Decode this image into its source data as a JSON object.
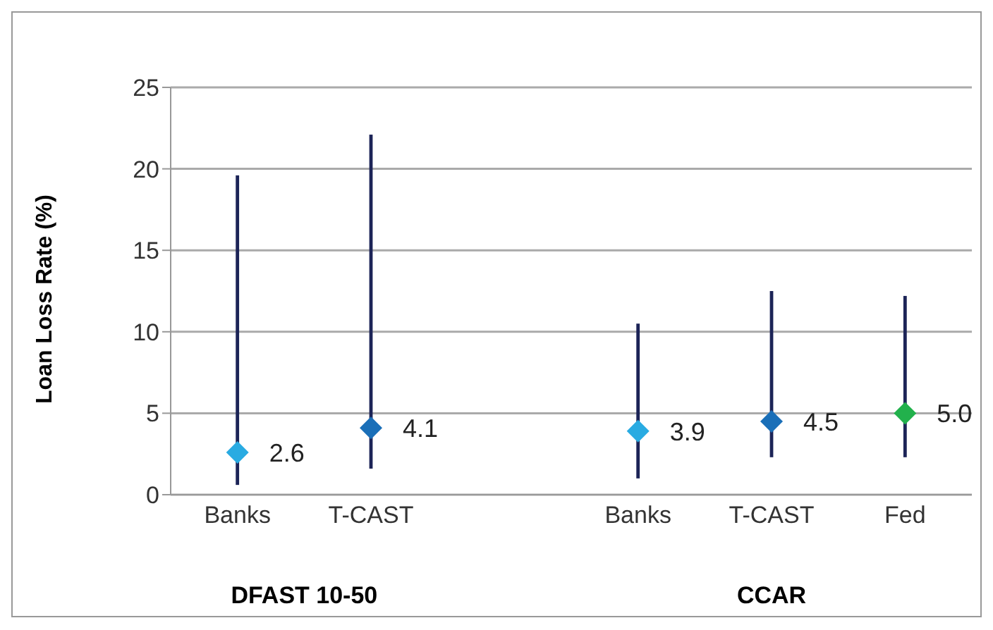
{
  "chart_data": {
    "type": "scatter",
    "ylabel": "Loan Loss Rate (%)",
    "categories": [
      "Banks",
      "T-CAST",
      null,
      "Banks",
      "T-CAST",
      "Fed"
    ],
    "values": [
      2.6,
      4.1,
      null,
      3.9,
      4.5,
      5.0
    ],
    "colors": [
      "#29abe2",
      "#1a6fb8",
      null,
      "#29abe2",
      "#1a6fb8",
      "#22b14c"
    ],
    "errors": [
      [
        0.6,
        19.6
      ],
      [
        1.6,
        22.1
      ],
      null,
      [
        1.0,
        10.5
      ],
      [
        2.3,
        12.5
      ],
      [
        2.3,
        12.2
      ]
    ],
    "ylim": [
      0,
      25
    ],
    "yticks": [
      0,
      5,
      10,
      15,
      20,
      25
    ],
    "value_labels": [
      "2.6",
      "4.1",
      null,
      "3.9",
      "4.5",
      "5.0"
    ],
    "grid": "y",
    "legend": false,
    "marker": "diamond",
    "annotations": [
      "DFAST 10-50",
      "CCAR"
    ]
  }
}
